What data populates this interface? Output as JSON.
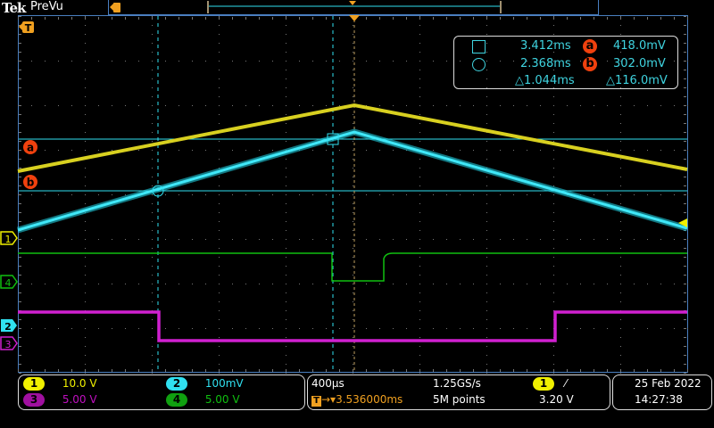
{
  "header": {
    "brand": "Tek",
    "mode": "PreVu"
  },
  "colors": {
    "ch1": "#f0f000",
    "ch2": "#30e0f0",
    "ch3": "#c010c0",
    "ch4": "#10c010",
    "trigger": "#f0a020",
    "cursor_badge": "#f0410e",
    "grid": "#777777",
    "frame": "#4a7fc0"
  },
  "markers": {
    "trigger": "T",
    "cursor_a": "a",
    "cursor_b": "b",
    "ch1": "1",
    "ch2": "2",
    "ch3": "3",
    "ch4": "4"
  },
  "cursor_readout": {
    "cursor1_icon": "square-icon",
    "cursor2_icon": "circle-icon",
    "t1": "3.412ms",
    "t2": "2.368ms",
    "dt": "△1.044ms",
    "a_label": "a",
    "b_label": "b",
    "va": "418.0mV",
    "vb": "302.0mV",
    "dv": "△116.0mV"
  },
  "channels": [
    {
      "id": "1",
      "scale": "10.0 V"
    },
    {
      "id": "2",
      "scale": "100mV"
    },
    {
      "id": "3",
      "scale": "5.00 V"
    },
    {
      "id": "4",
      "scale": "5.00 V"
    }
  ],
  "timebase": {
    "scale": "400µs",
    "trigger_delay": "3.536000ms",
    "sample_rate": "1.25GS/s",
    "record_length": "5M points"
  },
  "trigger": {
    "source": "1",
    "slope_icon": "rising-edge-icon",
    "slope": "⁄",
    "level": "3.20 V"
  },
  "datetime": {
    "date": "25 Feb  2022",
    "time": "14:27:38"
  }
}
